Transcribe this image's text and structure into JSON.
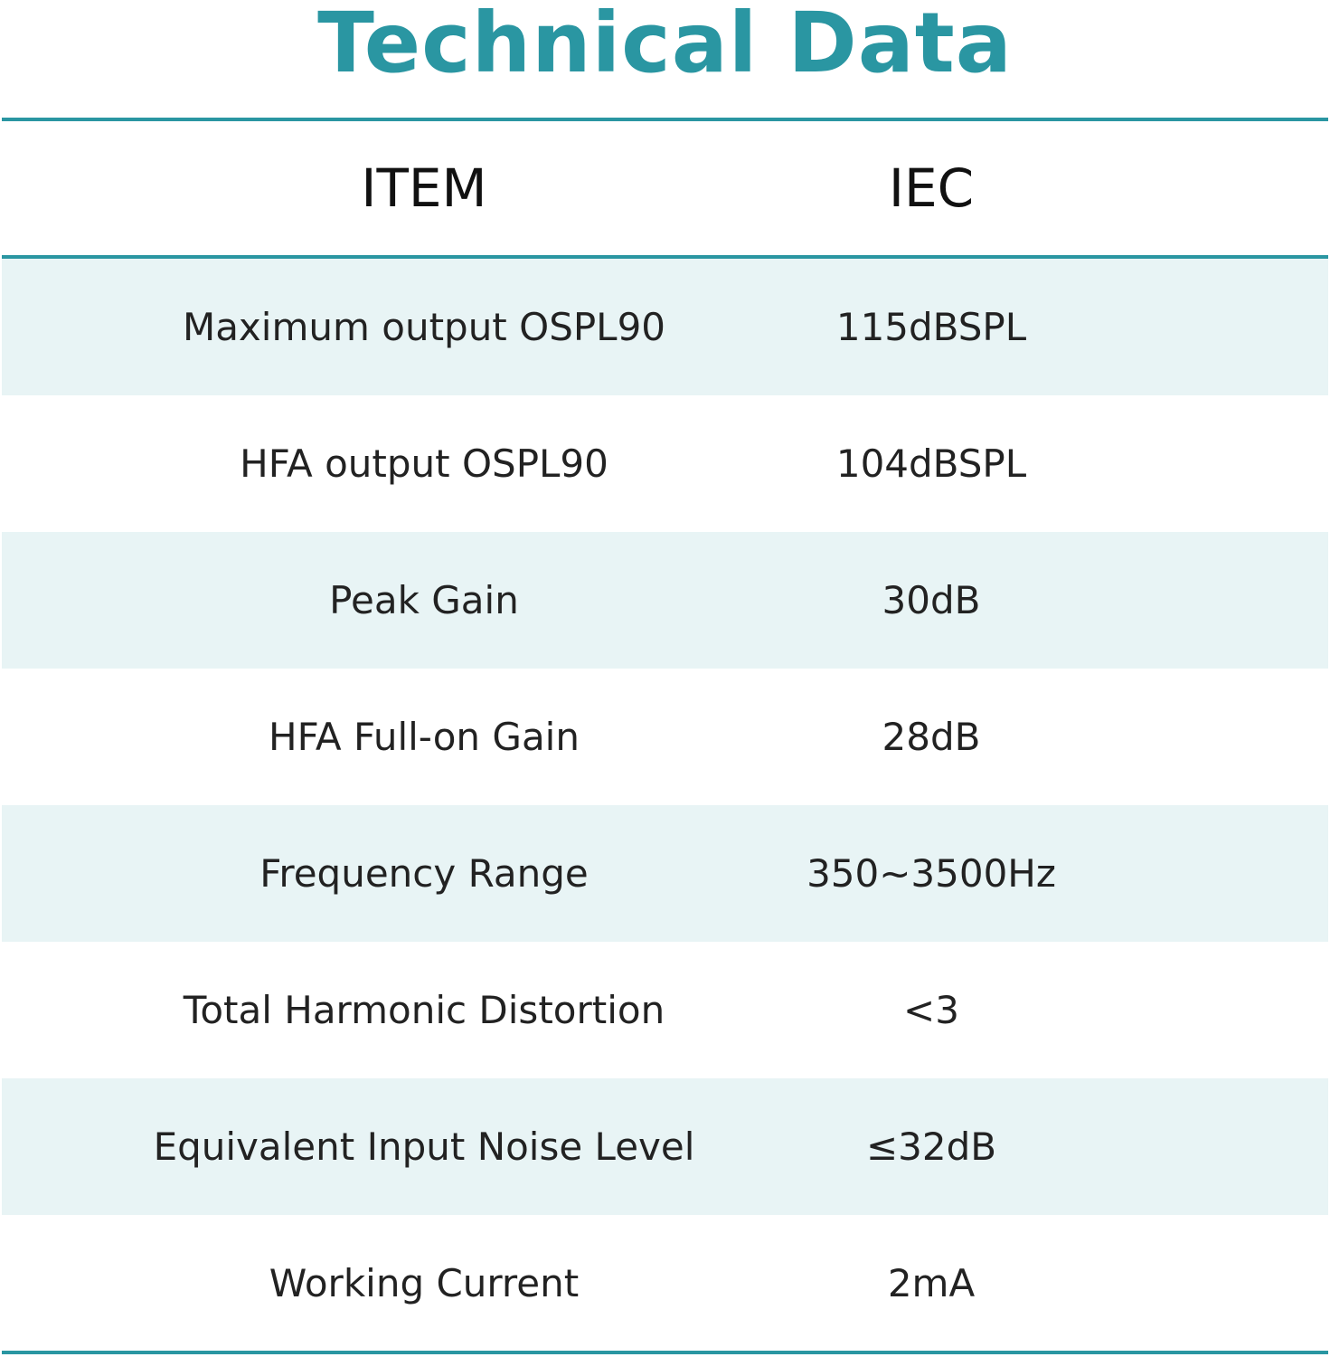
{
  "title": "Technical Data",
  "colors": {
    "accent": "#2a96a2",
    "row_shade": "#e8f4f5",
    "text": "#222222"
  },
  "table": {
    "headers": {
      "item": "ITEM",
      "iec": "IEC"
    },
    "rows": [
      {
        "item": "Maximum output OSPL90",
        "iec": "115dBSPL"
      },
      {
        "item": "HFA output OSPL90",
        "iec": "104dBSPL"
      },
      {
        "item": "Peak Gain",
        "iec": "30dB"
      },
      {
        "item": "HFA Full-on Gain",
        "iec": "28dB"
      },
      {
        "item": "Frequency Range",
        "iec": "350~3500Hz"
      },
      {
        "item": "Total Harmonic Distortion",
        "iec": "<3"
      },
      {
        "item": "Equivalent Input Noise Level",
        "iec": "≤32dB"
      },
      {
        "item": "Working Current",
        "iec": "2mA"
      }
    ]
  }
}
